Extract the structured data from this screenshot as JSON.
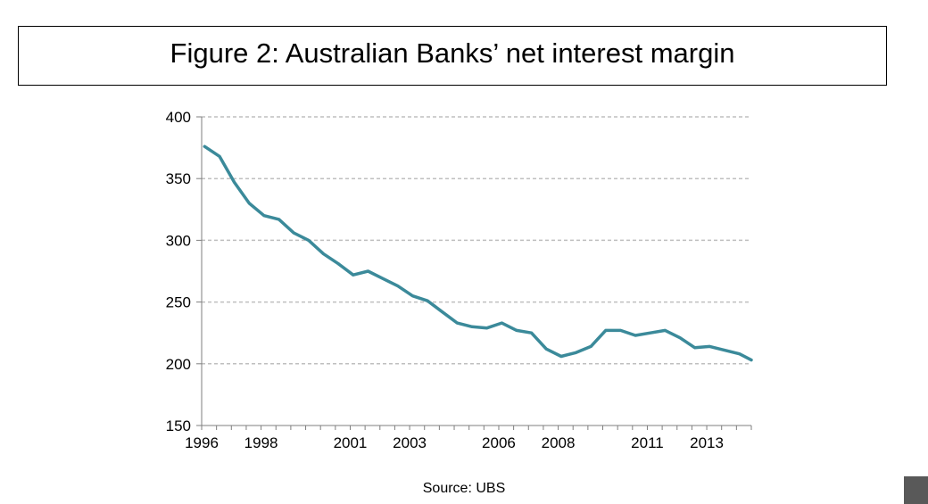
{
  "title": "Figure 2: Australian Banks’ net interest margin",
  "source": "Source: UBS",
  "colors": {
    "line": "#3b8a9a",
    "grid": "#bfbfbf",
    "axis": "#7f7f7f",
    "corner": "#595959"
  },
  "chart_data": {
    "type": "line",
    "title": "Figure 2: Australian Banks’ net interest margin",
    "xlabel": "",
    "ylabel": "",
    "ylim": [
      150,
      400
    ],
    "yticks": [
      150,
      200,
      250,
      300,
      350,
      400
    ],
    "xlim": [
      1996,
      2014.5
    ],
    "xticks": [
      1996,
      1998,
      2001,
      2003,
      2006,
      2008,
      2011,
      2013
    ],
    "xtick_labels": [
      "1996",
      "1998",
      "2001",
      "2003",
      "2006",
      "2008",
      "2011",
      "2013"
    ],
    "grid": "horizontal dashed",
    "legend": "none",
    "series": [
      {
        "x": [
          1996.1,
          1996.6,
          1997.1,
          1997.6,
          1998.1,
          1998.6,
          1999.1,
          1999.6,
          2000.1,
          2000.6,
          2001.1,
          2001.6,
          2002.1,
          2002.6,
          2003.1,
          2003.6,
          2004.1,
          2004.6,
          2005.1,
          2005.6,
          2006.1,
          2006.6,
          2007.1,
          2007.6,
          2008.1,
          2008.6,
          2009.1,
          2009.6,
          2010.1,
          2010.6,
          2011.1,
          2011.6,
          2012.1,
          2012.6,
          2013.1,
          2013.6,
          2014.1,
          2014.5
        ],
        "values": [
          376,
          368,
          347,
          330,
          320,
          317,
          306,
          300,
          289,
          281,
          272,
          275,
          269,
          263,
          255,
          251,
          242,
          233,
          230,
          229,
          233,
          227,
          225,
          212,
          206,
          209,
          214,
          227,
          227,
          223,
          225,
          227,
          221,
          213,
          214,
          211,
          208,
          203
        ]
      }
    ]
  }
}
